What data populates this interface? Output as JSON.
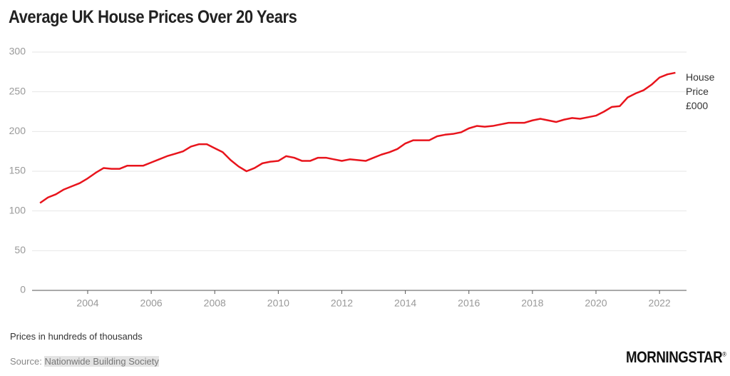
{
  "chart_data": {
    "type": "line",
    "title": "Average UK House Prices Over 20 Years",
    "note": "Prices in hundreds of thousands",
    "source_label": "Source:",
    "source": "Nationwide Building Society",
    "logo": "MORNINGSTAR",
    "x": [
      2002.5,
      2002.75,
      2003,
      2003.25,
      2003.5,
      2003.75,
      2004,
      2004.25,
      2004.5,
      2004.75,
      2005,
      2005.25,
      2005.5,
      2005.75,
      2006,
      2006.25,
      2006.5,
      2006.75,
      2007,
      2007.25,
      2007.5,
      2007.75,
      2008,
      2008.25,
      2008.5,
      2008.75,
      2009,
      2009.25,
      2009.5,
      2009.75,
      2010,
      2010.25,
      2010.5,
      2010.75,
      2011,
      2011.25,
      2011.5,
      2011.75,
      2012,
      2012.25,
      2012.5,
      2012.75,
      2013,
      2013.25,
      2013.5,
      2013.75,
      2014,
      2014.25,
      2014.5,
      2014.75,
      2015,
      2015.25,
      2015.5,
      2015.75,
      2016,
      2016.25,
      2016.5,
      2016.75,
      2017,
      2017.25,
      2017.5,
      2017.75,
      2018,
      2018.25,
      2018.5,
      2018.75,
      2019,
      2019.25,
      2019.5,
      2019.75,
      2020,
      2020.25,
      2020.5,
      2020.75,
      2021,
      2021.25,
      2021.5,
      2021.75,
      2022,
      2022.25,
      2022.5
    ],
    "series": [
      {
        "name": "House Price £000",
        "color": "#e8141c",
        "values": [
          110,
          117,
          121,
          127,
          131,
          135,
          141,
          148,
          154,
          153,
          153,
          157,
          157,
          157,
          161,
          165,
          169,
          172,
          175,
          181,
          184,
          184,
          179,
          174,
          164,
          156,
          150,
          154,
          160,
          162,
          163,
          169,
          167,
          163,
          163,
          167,
          167,
          165,
          163,
          165,
          164,
          163,
          167,
          171,
          174,
          178,
          185,
          189,
          189,
          189,
          194,
          196,
          197,
          199,
          204,
          207,
          206,
          207,
          209,
          211,
          211,
          211,
          214,
          216,
          214,
          212,
          215,
          217,
          216,
          218,
          220,
          225,
          231,
          232,
          243,
          248,
          252,
          259,
          268,
          272,
          274
        ]
      }
    ],
    "xlim": [
      2002.25,
      2022.85
    ],
    "xticks": [
      2004,
      2006,
      2008,
      2010,
      2012,
      2014,
      2016,
      2018,
      2020,
      2022
    ],
    "ylim": [
      0,
      300
    ],
    "yticks": [
      0,
      50,
      100,
      150,
      200,
      250,
      300
    ],
    "grid": true
  }
}
